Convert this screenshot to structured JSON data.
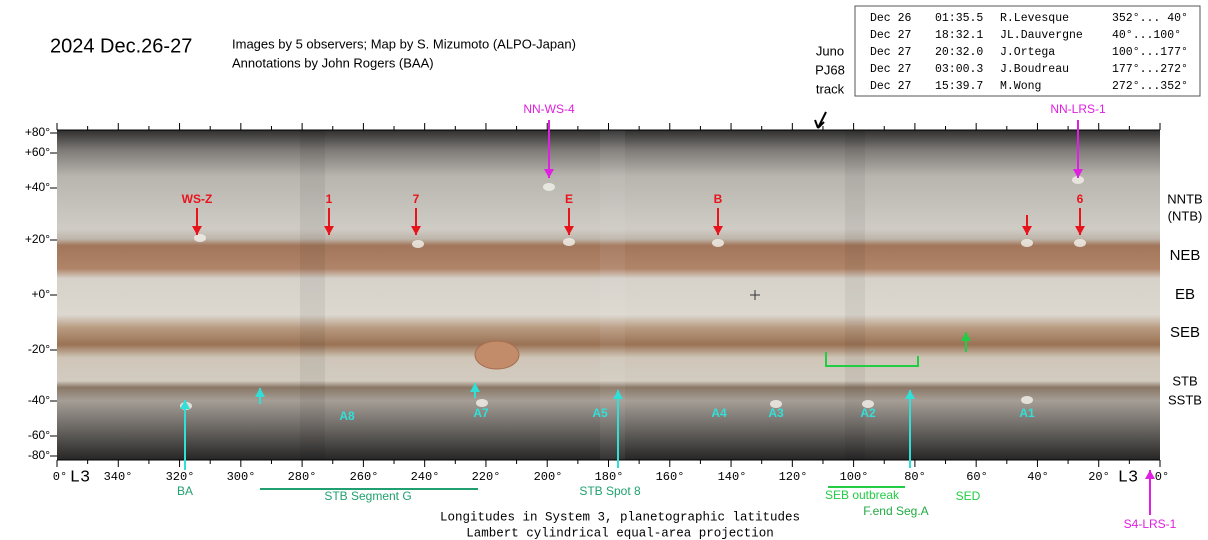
{
  "header": {
    "title": "2024 Dec.26-27",
    "credits": [
      "Images by 5 observers; Map by S. Mizumoto (ALPO-Japan)",
      "Annotations  by John Rogers (BAA)"
    ]
  },
  "observers": {
    "rows": [
      [
        "Dec 26",
        "01:35.5",
        "R.Levesque",
        "352°... 40°"
      ],
      [
        "Dec 27",
        "18:32.1",
        "JL.Dauvergne",
        "40°...100°"
      ],
      [
        "Dec 27",
        "20:32.0",
        "J.Ortega",
        "100°...177°"
      ],
      [
        "Dec 27",
        "03:00.3",
        "J.Boudreau",
        "177°...272°"
      ],
      [
        "Dec 27",
        "15:39.7",
        "M.Wong",
        "272°...352°"
      ]
    ]
  },
  "juno": [
    "Juno",
    "PJ68",
    "track"
  ],
  "map": {
    "latitude_labels": [
      "+80°",
      "+60°",
      "+40°",
      "+20°",
      "+0°",
      "-20°",
      "-40°",
      "-60°",
      "-80°"
    ],
    "longitude_labels": [
      "0°",
      "L3",
      "340°",
      "320°",
      "300°",
      "280°",
      "260°",
      "240°",
      "220°",
      "200°",
      "180°",
      "160°",
      "140°",
      "120°",
      "100°",
      "80°",
      "60°",
      "40°",
      "20°",
      "L3",
      "0°"
    ],
    "belts": [
      "NNTB",
      "(NTB)",
      "NEB",
      "EB",
      "SEB",
      "STB",
      "SSTB"
    ],
    "red_markers": {
      "color": "#e8141c",
      "labels": [
        "WS-Z",
        "1",
        "7",
        "E",
        "B",
        "6"
      ]
    },
    "magenta_markers": {
      "color": "#e020e0",
      "labels": [
        "NN-WS-4",
        "NN-LRS-1",
        "S4-LRS-1"
      ]
    },
    "cyan_markers": {
      "color": "#30e0d8",
      "labels": [
        "A8",
        "A7",
        "A5",
        "A4",
        "A3",
        "A2",
        "A1"
      ]
    },
    "green_labels": {
      "color": "#20a070",
      "labels": [
        "BA",
        "STB Segment G",
        "STB Spot 8",
        "SEB outbreak",
        "F.end Seg.A",
        "SED"
      ]
    }
  },
  "footer": [
    "Longitudes in System 3, planetographic latitudes",
    "Lambert cylindrical equal-area projection"
  ]
}
